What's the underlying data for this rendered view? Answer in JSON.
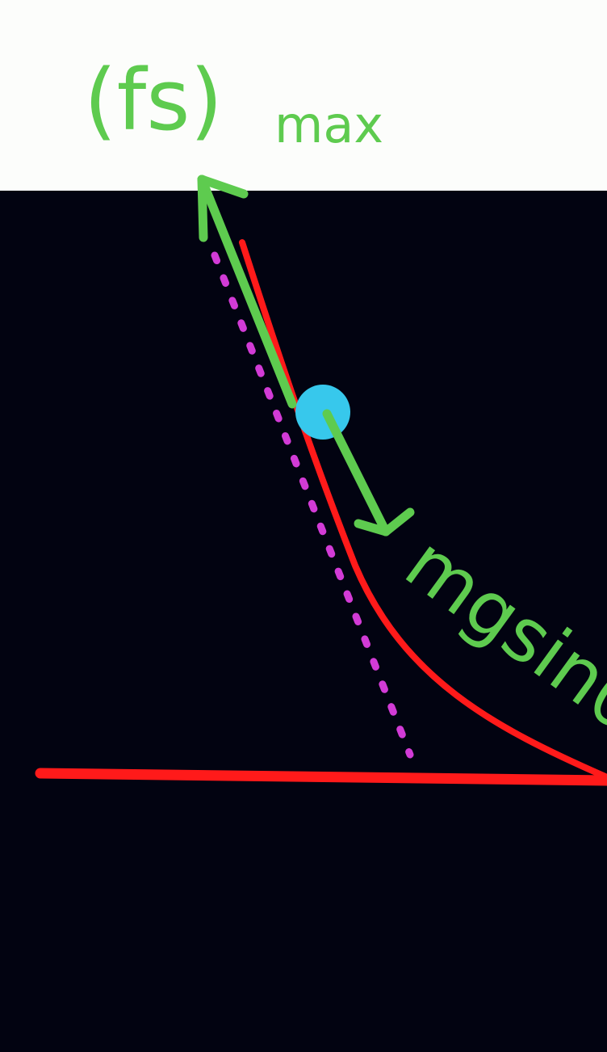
{
  "labels": {
    "friction_label_main": "(fs)",
    "friction_label_sub": "max",
    "component_label": "mgsinθ"
  },
  "colors": {
    "background": "#020311",
    "header_band": "#fcfdfb",
    "curve": "#ff1a1a",
    "ground": "#ff1a1a",
    "tangent_dotted": "#d23bd6",
    "arrow": "#5ecb4f",
    "label": "#5ecb4f",
    "ball": "#37c8ec"
  }
}
